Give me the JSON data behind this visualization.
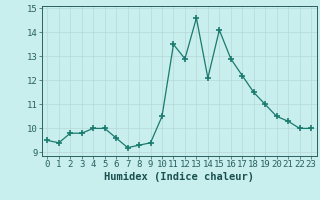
{
  "x": [
    0,
    1,
    2,
    3,
    4,
    5,
    6,
    7,
    8,
    9,
    10,
    11,
    12,
    13,
    14,
    15,
    16,
    17,
    18,
    19,
    20,
    21,
    22,
    23
  ],
  "y": [
    9.5,
    9.4,
    9.8,
    9.8,
    10.0,
    10.0,
    9.6,
    9.2,
    9.3,
    9.4,
    10.5,
    13.5,
    12.9,
    14.6,
    12.1,
    14.1,
    12.9,
    12.2,
    11.5,
    11.0,
    10.5,
    10.3,
    10.0,
    10.0
  ],
  "xlabel": "Humidex (Indice chaleur)",
  "ylim": [
    8.85,
    15.1
  ],
  "xlim": [
    -0.5,
    23.5
  ],
  "yticks": [
    9,
    10,
    11,
    12,
    13,
    14,
    15
  ],
  "xticks": [
    0,
    1,
    2,
    3,
    4,
    5,
    6,
    7,
    8,
    9,
    10,
    11,
    12,
    13,
    14,
    15,
    16,
    17,
    18,
    19,
    20,
    21,
    22,
    23
  ],
  "line_color": "#1a7a6e",
  "marker_color": "#1a7a6e",
  "bg_color": "#c8eeee",
  "grid_color": "#b8d8d8",
  "axis_color": "#2a6060",
  "tick_label_color": "#2a5a5a",
  "xlabel_color": "#1a5050",
  "xlabel_fontsize": 7.5,
  "tick_fontsize": 6.5
}
